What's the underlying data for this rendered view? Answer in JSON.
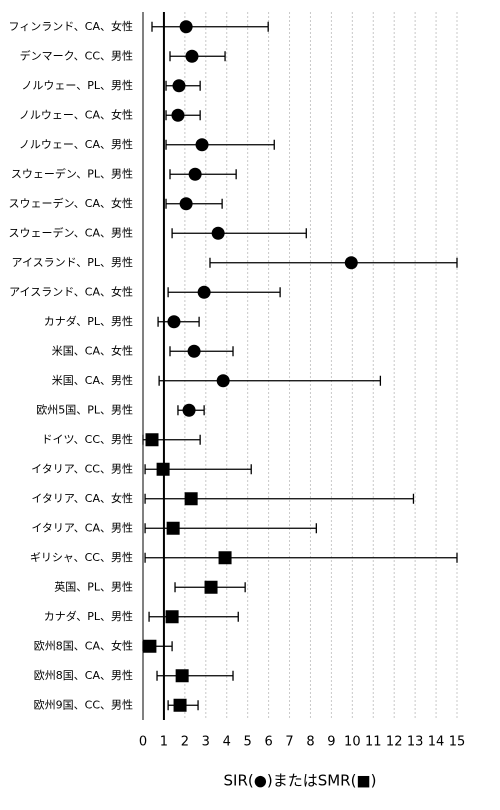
{
  "chart_data": {
    "type": "forest",
    "xlabel": "SIR(●)またはSMR(■)",
    "categories": [
      "フィンランド、CA、女性",
      "デンマーク、CC、男性",
      "ノルウェー、PL、男性",
      "ノルウェー、CA、女性",
      "ノルウェー、CA、男性",
      "スウェーデン、PL、男性",
      "スウェーデン、CA、女性",
      "スウェーデン、CA、男性",
      "アイスランド、PL、男性",
      "アイスランド、CA、女性",
      "カナダ、PL、男性",
      "米国、CA、女性",
      "米国、CA、男性",
      "欧州5国、PL、男性",
      "ドイツ、CC、男性",
      "イタリア、CC、男性",
      "イタリア、CA、女性",
      "イタリア、CA、男性",
      "ギリシャ、CC、男性",
      "英国、PL、男性",
      "カナダ、PL、男性",
      "欧州8国、CA、女性",
      "欧州8国、CA、男性",
      "欧州9国、CC、男性"
    ],
    "values": [
      2.06,
      2.34,
      1.72,
      1.67,
      2.82,
      2.49,
      2.06,
      3.59,
      9.95,
      2.92,
      1.48,
      2.44,
      3.83,
      2.2,
      0.43,
      0.96,
      2.3,
      1.44,
      3.92,
      3.25,
      1.39,
      0.33,
      1.87,
      1.77
    ],
    "lower": [
      0.43,
      1.29,
      1.1,
      1.1,
      1.1,
      1.29,
      1.1,
      1.39,
      3.2,
      1.2,
      0.72,
      1.29,
      0.77,
      1.67,
      0,
      0.1,
      0.1,
      0.1,
      0.1,
      1.53,
      0.29,
      0,
      0.67,
      1.2
    ],
    "upper": [
      5.98,
      3.92,
      2.73,
      2.73,
      6.27,
      4.45,
      3.78,
      7.8,
      15,
      6.55,
      2.68,
      4.3,
      11.34,
      2.92,
      2.73,
      5.17,
      12.92,
      8.28,
      15,
      4.88,
      4.55,
      1.39,
      4.3,
      2.63
    ],
    "markers": [
      "circle",
      "circle",
      "circle",
      "circle",
      "circle",
      "circle",
      "circle",
      "circle",
      "circle",
      "circle",
      "circle",
      "circle",
      "circle",
      "circle",
      "square",
      "square",
      "square",
      "square",
      "square",
      "square",
      "square",
      "square",
      "square",
      "square"
    ],
    "color": "#000000",
    "reference": 1,
    "xlim": [
      0,
      15
    ],
    "xticks": [
      0,
      1,
      2,
      3,
      4,
      5,
      6,
      7,
      8,
      9,
      10,
      11,
      12,
      13,
      14,
      15
    ],
    "grid": true
  }
}
